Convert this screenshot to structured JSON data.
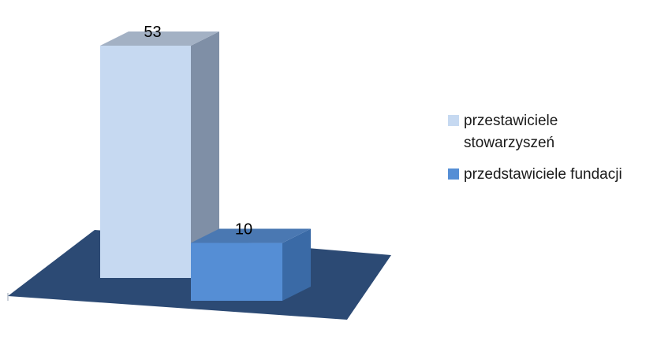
{
  "chart_data": {
    "type": "bar",
    "style": "3d",
    "title": "",
    "categories": [
      "przestawiciele stowarzyszeń",
      "przedstawiciele fundacji"
    ],
    "values": [
      53,
      10
    ],
    "data_labels": [
      "53",
      "10"
    ],
    "ylim": [
      0,
      53
    ],
    "grid": false,
    "legend_position": "right",
    "legend": [
      {
        "line1": "przestawiciele",
        "line2": "stowarzyszeń",
        "color": "#c6d9f1"
      },
      {
        "line1": "przedstawiciele fundacji",
        "line2": "",
        "color": "#558ed5"
      }
    ],
    "colors": {
      "floor": "#2c4a74",
      "series1_front": "#c6d9f1",
      "series1_side": "#7f8fa6",
      "series1_top": "#a3b1c4",
      "series2_front": "#558ed5",
      "series2_side": "#3a6aa6",
      "series2_top": "#4a78b2"
    }
  }
}
